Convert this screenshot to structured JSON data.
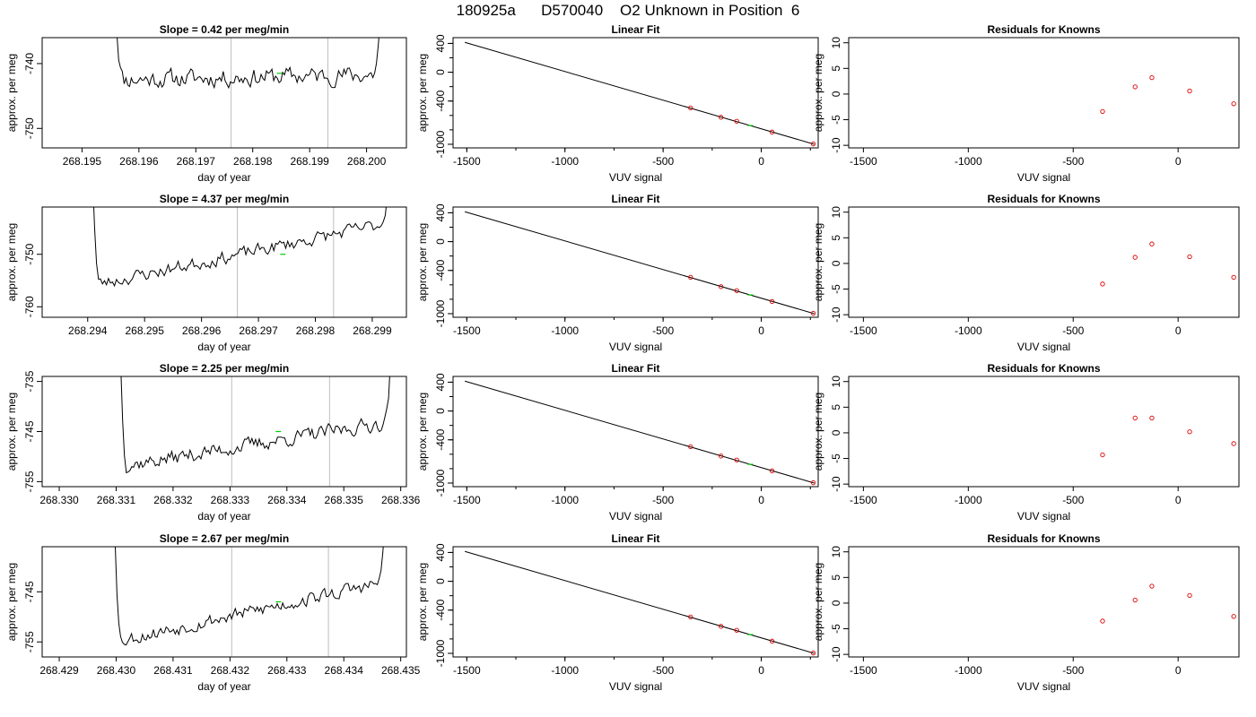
{
  "page_title": "180925a      D570040    O2 Unknown in Position  6",
  "colors": {
    "trace": "#000000",
    "marker_vline": "#bebebe",
    "unknown_point": "#00cc00",
    "known_point": "#dd0000",
    "fit_line": "#000000"
  },
  "chart_data": [
    {
      "type": "line",
      "panel": "timeseries",
      "row": 1,
      "title": "Slope =  0.42  per meg/min",
      "xlabel": "day of year",
      "ylabel": "approx. per meg",
      "xlim": [
        268.1943,
        268.2007
      ],
      "ylim": [
        -753,
        -736
      ],
      "xticks": [
        268.195,
        268.196,
        268.197,
        268.198,
        268.199,
        268.2
      ],
      "xtick_labels": [
        "268.195",
        "268.196",
        "268.197",
        "268.198",
        "268.199",
        "268.200"
      ],
      "yticks": [
        -740,
        -750
      ],
      "ytick_labels": [
        "-740",
        "-750"
      ],
      "trace": {
        "x_start": 268.19555,
        "x_end": 268.2003,
        "start_y": -725,
        "end_y": -725,
        "base": -742.5,
        "drift": 0.8,
        "amp": 2.2,
        "plunge": 0.04,
        "seed": 11
      },
      "vlines": [
        268.19762,
        268.19932
      ],
      "unknown_point": {
        "x": 268.19847,
        "y": -741.5
      }
    },
    {
      "type": "line",
      "panel": "fit",
      "row": 1,
      "title": "Linear Fit",
      "xlabel": "VUV signal",
      "ylabel": "approx. per meg",
      "xlim": [
        -1570,
        290
      ],
      "ylim": [
        -1050,
        480
      ],
      "xticks": [
        -1500,
        -1000,
        -500,
        0
      ],
      "xtick_labels": [
        "-1500",
        "-1000",
        "-500",
        "0"
      ],
      "yticks": [
        400,
        0,
        -400,
        -1000
      ],
      "ytick_labels": [
        "400",
        "0",
        "-400",
        "-1000"
      ],
      "fit_line": {
        "x": [
          -1510,
          270
        ],
        "y": [
          415,
          -1000
        ]
      },
      "known_points": [
        {
          "x": -360,
          "y": -495
        },
        {
          "x": -205,
          "y": -625
        },
        {
          "x": -125,
          "y": -680
        },
        {
          "x": 55,
          "y": -830
        },
        {
          "x": 265,
          "y": -995
        }
      ],
      "unknown_point": {
        "x": -55,
        "y": -740
      }
    },
    {
      "type": "scatter",
      "panel": "residuals",
      "row": 1,
      "title": "Residuals for Knowns",
      "xlabel": "VUV signal",
      "ylabel": "approx. per meg",
      "xlim": [
        -1570,
        290
      ],
      "ylim": [
        -10.5,
        11
      ],
      "xticks": [
        -1500,
        -1000,
        -500,
        0
      ],
      "xtick_labels": [
        "-1500",
        "-1000",
        "-500",
        "0"
      ],
      "yticks": [
        10,
        5,
        0,
        -5,
        -10
      ],
      "ytick_labels": [
        "10",
        "5",
        "0",
        "-5",
        "-10"
      ],
      "points": [
        {
          "x": -360,
          "y": -3.4
        },
        {
          "x": -205,
          "y": 1.4
        },
        {
          "x": -125,
          "y": 3.2
        },
        {
          "x": 55,
          "y": 0.6
        },
        {
          "x": 265,
          "y": -1.9
        }
      ]
    },
    {
      "type": "line",
      "panel": "timeseries",
      "row": 2,
      "title": "Slope =  4.37  per meg/min",
      "xlabel": "day of year",
      "ylabel": "approx. per meg",
      "xlim": [
        268.2932,
        268.2996
      ],
      "ylim": [
        -762,
        -741
      ],
      "xticks": [
        268.294,
        268.295,
        268.296,
        268.297,
        268.298,
        268.299
      ],
      "xtick_labels": [
        "268.294",
        "268.295",
        "268.296",
        "268.297",
        "268.298",
        "268.299"
      ],
      "yticks": [
        -750,
        -760
      ],
      "ytick_labels": [
        "-750",
        "-760"
      ],
      "trace": {
        "x_start": 268.29405,
        "x_end": 268.2993,
        "start_y": -720,
        "end_y": -735,
        "base": -756,
        "drift": 12,
        "amp": 2.0,
        "plunge": 0.03,
        "seed": 23
      },
      "vlines": [
        268.29663,
        268.29832
      ],
      "unknown_point": {
        "x": 268.29743,
        "y": -750
      }
    },
    {
      "type": "line",
      "panel": "fit",
      "row": 2,
      "title": "Linear Fit",
      "xlabel": "VUV signal",
      "ylabel": "approx. per meg",
      "xlim": [
        -1570,
        290
      ],
      "ylim": [
        -1050,
        480
      ],
      "xticks": [
        -1500,
        -1000,
        -500,
        0
      ],
      "xtick_labels": [
        "-1500",
        "-1000",
        "-500",
        "0"
      ],
      "yticks": [
        400,
        0,
        -400,
        -1000
      ],
      "ytick_labels": [
        "400",
        "0",
        "-400",
        "-1000"
      ],
      "fit_line": {
        "x": [
          -1510,
          270
        ],
        "y": [
          415,
          -1000
        ]
      },
      "known_points": [
        {
          "x": -360,
          "y": -495
        },
        {
          "x": -205,
          "y": -625
        },
        {
          "x": -125,
          "y": -680
        },
        {
          "x": 55,
          "y": -830
        },
        {
          "x": 265,
          "y": -995
        }
      ],
      "unknown_point": {
        "x": -55,
        "y": -740
      }
    },
    {
      "type": "scatter",
      "panel": "residuals",
      "row": 2,
      "title": "Residuals for Knowns",
      "xlabel": "VUV signal",
      "ylabel": "approx. per meg",
      "xlim": [
        -1570,
        290
      ],
      "ylim": [
        -10.5,
        11
      ],
      "xticks": [
        -1500,
        -1000,
        -500,
        0
      ],
      "xtick_labels": [
        "-1500",
        "-1000",
        "-500",
        "0"
      ],
      "yticks": [
        10,
        5,
        0,
        -5,
        -10
      ],
      "ytick_labels": [
        "10",
        "5",
        "0",
        "-5",
        "-10"
      ],
      "points": [
        {
          "x": -360,
          "y": -4.0
        },
        {
          "x": -205,
          "y": 1.2
        },
        {
          "x": -125,
          "y": 3.8
        },
        {
          "x": 55,
          "y": 1.3
        },
        {
          "x": 265,
          "y": -2.7
        }
      ]
    },
    {
      "type": "line",
      "panel": "timeseries",
      "row": 3,
      "title": "Slope =  2.25  per meg/min",
      "xlabel": "day of year",
      "ylabel": "approx. per meg",
      "xlim": [
        268.3297,
        268.3361
      ],
      "ylim": [
        -756,
        -734
      ],
      "xticks": [
        268.33,
        268.331,
        268.332,
        268.333,
        268.334,
        268.335,
        268.336
      ],
      "xtick_labels": [
        "268.330",
        "268.331",
        "268.332",
        "268.333",
        "268.334",
        "268.335",
        "268.336"
      ],
      "yticks": [
        -735,
        -745,
        -755
      ],
      "ytick_labels": [
        "-735",
        "-745",
        "-755"
      ],
      "trace": {
        "x_start": 268.33105,
        "x_end": 268.33585,
        "start_y": -720,
        "end_y": -725,
        "base": -752,
        "drift": 9,
        "amp": 2.3,
        "plunge": 0.03,
        "seed": 37
      },
      "vlines": [
        268.33303,
        268.33475
      ],
      "unknown_point": {
        "x": 268.33385,
        "y": -745
      }
    },
    {
      "type": "line",
      "panel": "fit",
      "row": 3,
      "title": "Linear Fit",
      "xlabel": "VUV signal",
      "ylabel": "approx. per meg",
      "xlim": [
        -1570,
        290
      ],
      "ylim": [
        -1050,
        480
      ],
      "xticks": [
        -1500,
        -1000,
        -500,
        0
      ],
      "xtick_labels": [
        "-1500",
        "-1000",
        "-500",
        "0"
      ],
      "yticks": [
        400,
        0,
        -400,
        -1000
      ],
      "ytick_labels": [
        "400",
        "0",
        "-400",
        "-1000"
      ],
      "fit_line": {
        "x": [
          -1510,
          270
        ],
        "y": [
          415,
          -1000
        ]
      },
      "known_points": [
        {
          "x": -360,
          "y": -495
        },
        {
          "x": -205,
          "y": -625
        },
        {
          "x": -125,
          "y": -680
        },
        {
          "x": 55,
          "y": -830
        },
        {
          "x": 265,
          "y": -995
        }
      ],
      "unknown_point": {
        "x": -55,
        "y": -740
      }
    },
    {
      "type": "scatter",
      "panel": "residuals",
      "row": 3,
      "title": "Residuals for Knowns",
      "xlabel": "VUV signal",
      "ylabel": "approx. per meg",
      "xlim": [
        -1570,
        290
      ],
      "ylim": [
        -10.5,
        11
      ],
      "xticks": [
        -1500,
        -1000,
        -500,
        0
      ],
      "xtick_labels": [
        "-1500",
        "-1000",
        "-500",
        "0"
      ],
      "yticks": [
        10,
        5,
        0,
        -5,
        -10
      ],
      "ytick_labels": [
        "10",
        "5",
        "0",
        "-5",
        "-10"
      ],
      "points": [
        {
          "x": -360,
          "y": -4.3
        },
        {
          "x": -205,
          "y": 2.9
        },
        {
          "x": -125,
          "y": 2.9
        },
        {
          "x": 55,
          "y": 0.2
        },
        {
          "x": 265,
          "y": -2.1
        }
      ]
    },
    {
      "type": "line",
      "panel": "timeseries",
      "row": 4,
      "title": "Slope =  2.67  per meg/min",
      "xlabel": "day of year",
      "ylabel": "approx. per meg",
      "xlim": [
        268.4287,
        268.4351
      ],
      "ylim": [
        -758,
        -736
      ],
      "xticks": [
        268.429,
        268.43,
        268.431,
        268.432,
        268.433,
        268.434,
        268.435
      ],
      "xtick_labels": [
        "268.429",
        "268.430",
        "268.431",
        "268.432",
        "268.433",
        "268.434",
        "268.435"
      ],
      "yticks": [
        -745,
        -755
      ],
      "ytick_labels": [
        "-745",
        "-755"
      ],
      "trace": {
        "x_start": 268.42995,
        "x_end": 268.43475,
        "start_y": -720,
        "end_y": -725,
        "base": -755,
        "drift": 12,
        "amp": 2.2,
        "plunge": 0.03,
        "seed": 53
      },
      "vlines": [
        268.43203,
        268.43373
      ],
      "unknown_point": {
        "x": 268.43285,
        "y": -747
      }
    },
    {
      "type": "line",
      "panel": "fit",
      "row": 4,
      "title": "Linear Fit",
      "xlabel": "VUV signal",
      "ylabel": "approx. per meg",
      "xlim": [
        -1570,
        290
      ],
      "ylim": [
        -1050,
        480
      ],
      "xticks": [
        -1500,
        -1000,
        -500,
        0
      ],
      "xtick_labels": [
        "-1500",
        "-1000",
        "-500",
        "0"
      ],
      "yticks": [
        400,
        0,
        -400,
        -1000
      ],
      "ytick_labels": [
        "400",
        "0",
        "-400",
        "-1000"
      ],
      "fit_line": {
        "x": [
          -1510,
          270
        ],
        "y": [
          415,
          -1000
        ]
      },
      "known_points": [
        {
          "x": -360,
          "y": -495
        },
        {
          "x": -205,
          "y": -625
        },
        {
          "x": -125,
          "y": -680
        },
        {
          "x": 55,
          "y": -830
        },
        {
          "x": 265,
          "y": -995
        }
      ],
      "unknown_point": {
        "x": -55,
        "y": -740
      }
    },
    {
      "type": "scatter",
      "panel": "residuals",
      "row": 4,
      "title": "Residuals for Knowns",
      "xlabel": "VUV signal",
      "ylabel": "approx. per meg",
      "xlim": [
        -1570,
        290
      ],
      "ylim": [
        -10.5,
        11
      ],
      "xticks": [
        -1500,
        -1000,
        -500,
        0
      ],
      "xtick_labels": [
        "-1500",
        "-1000",
        "-500",
        "0"
      ],
      "yticks": [
        10,
        5,
        0,
        -5,
        -10
      ],
      "ytick_labels": [
        "10",
        "5",
        "0",
        "-5",
        "-10"
      ],
      "points": [
        {
          "x": -360,
          "y": -3.5
        },
        {
          "x": -205,
          "y": 0.6
        },
        {
          "x": -125,
          "y": 3.3
        },
        {
          "x": 55,
          "y": 1.5
        },
        {
          "x": 265,
          "y": -2.6
        }
      ]
    }
  ]
}
